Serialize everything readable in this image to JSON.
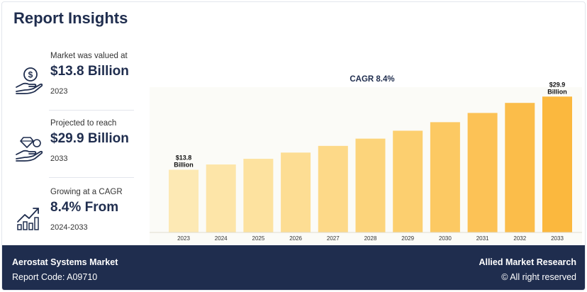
{
  "header": {
    "title": "Report Insights"
  },
  "stats": [
    {
      "label": "Market was valued at",
      "value": "$13.8 Billion",
      "sub": "2023",
      "icon": "money-hand-icon"
    },
    {
      "label": "Projected to reach",
      "value": "$29.9 Billion",
      "sub": "2033",
      "icon": "diamond-hand-icon"
    },
    {
      "label": "Growing at a CAGR",
      "value": "8.4% From",
      "sub": "2024-2033",
      "icon": "growth-bars-icon"
    }
  ],
  "chart_data": {
    "type": "bar",
    "title": "CAGR 8.4%",
    "categories": [
      "2023",
      "2024",
      "2025",
      "2026",
      "2027",
      "2028",
      "2029",
      "2030",
      "2031",
      "2032",
      "2033"
    ],
    "values": [
      13.8,
      14.96,
      16.21,
      17.58,
      19.05,
      20.65,
      22.39,
      24.27,
      26.3,
      28.51,
      29.9
    ],
    "data_labels": [
      {
        "index": 0,
        "lines": [
          "$13.8",
          "Billion"
        ]
      },
      {
        "index": 10,
        "lines": [
          "$29.9",
          "Billion"
        ]
      }
    ],
    "ylim": [
      0,
      34
    ],
    "grid": false,
    "bar_colors": [
      "#fde9b4",
      "#fde5a8",
      "#fde29f",
      "#fddd93",
      "#fdd988",
      "#fcd47b",
      "#fccf6f",
      "#fcc963",
      "#fcc256",
      "#fbbd4a",
      "#fbb83e"
    ]
  },
  "footer": {
    "report_name": "Aerostat Systems Market",
    "report_code": "Report Code: A09710",
    "brand": "Allied Market Research",
    "copyright": "© All right reserved"
  }
}
